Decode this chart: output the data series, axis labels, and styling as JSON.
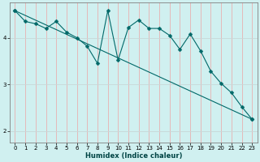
{
  "xlabel": "Humidex (Indice chaleur)",
  "bg_color": "#d0f0f0",
  "line_color": "#006868",
  "grid_color_v": "#e8b0b0",
  "grid_color_h": "#c8d8d8",
  "xlim": [
    -0.5,
    23.5
  ],
  "ylim": [
    1.75,
    4.75
  ],
  "x_ticks": [
    0,
    1,
    2,
    3,
    4,
    5,
    6,
    7,
    8,
    9,
    10,
    11,
    12,
    13,
    14,
    15,
    16,
    17,
    18,
    19,
    20,
    21,
    22,
    23
  ],
  "y_ticks": [
    2,
    3,
    4
  ],
  "jagged_x": [
    0,
    1,
    2,
    3,
    4,
    5,
    6,
    7,
    8,
    9,
    10,
    11,
    12,
    13,
    14,
    15,
    16,
    17,
    18,
    19,
    20,
    21,
    22,
    23
  ],
  "jagged_y": [
    4.58,
    4.35,
    4.3,
    4.2,
    4.35,
    4.12,
    4.0,
    3.82,
    3.45,
    4.58,
    3.52,
    4.22,
    4.38,
    4.2,
    4.2,
    4.05,
    3.75,
    4.08,
    3.72,
    3.28,
    3.02,
    2.82,
    2.52,
    2.25
  ],
  "trend_x": [
    0,
    23
  ],
  "trend_y": [
    4.58,
    2.25
  ],
  "marker": "D",
  "marker_size": 2.5,
  "linewidth": 0.8,
  "xlabel_fontsize": 6.0,
  "tick_fontsize": 5.0
}
